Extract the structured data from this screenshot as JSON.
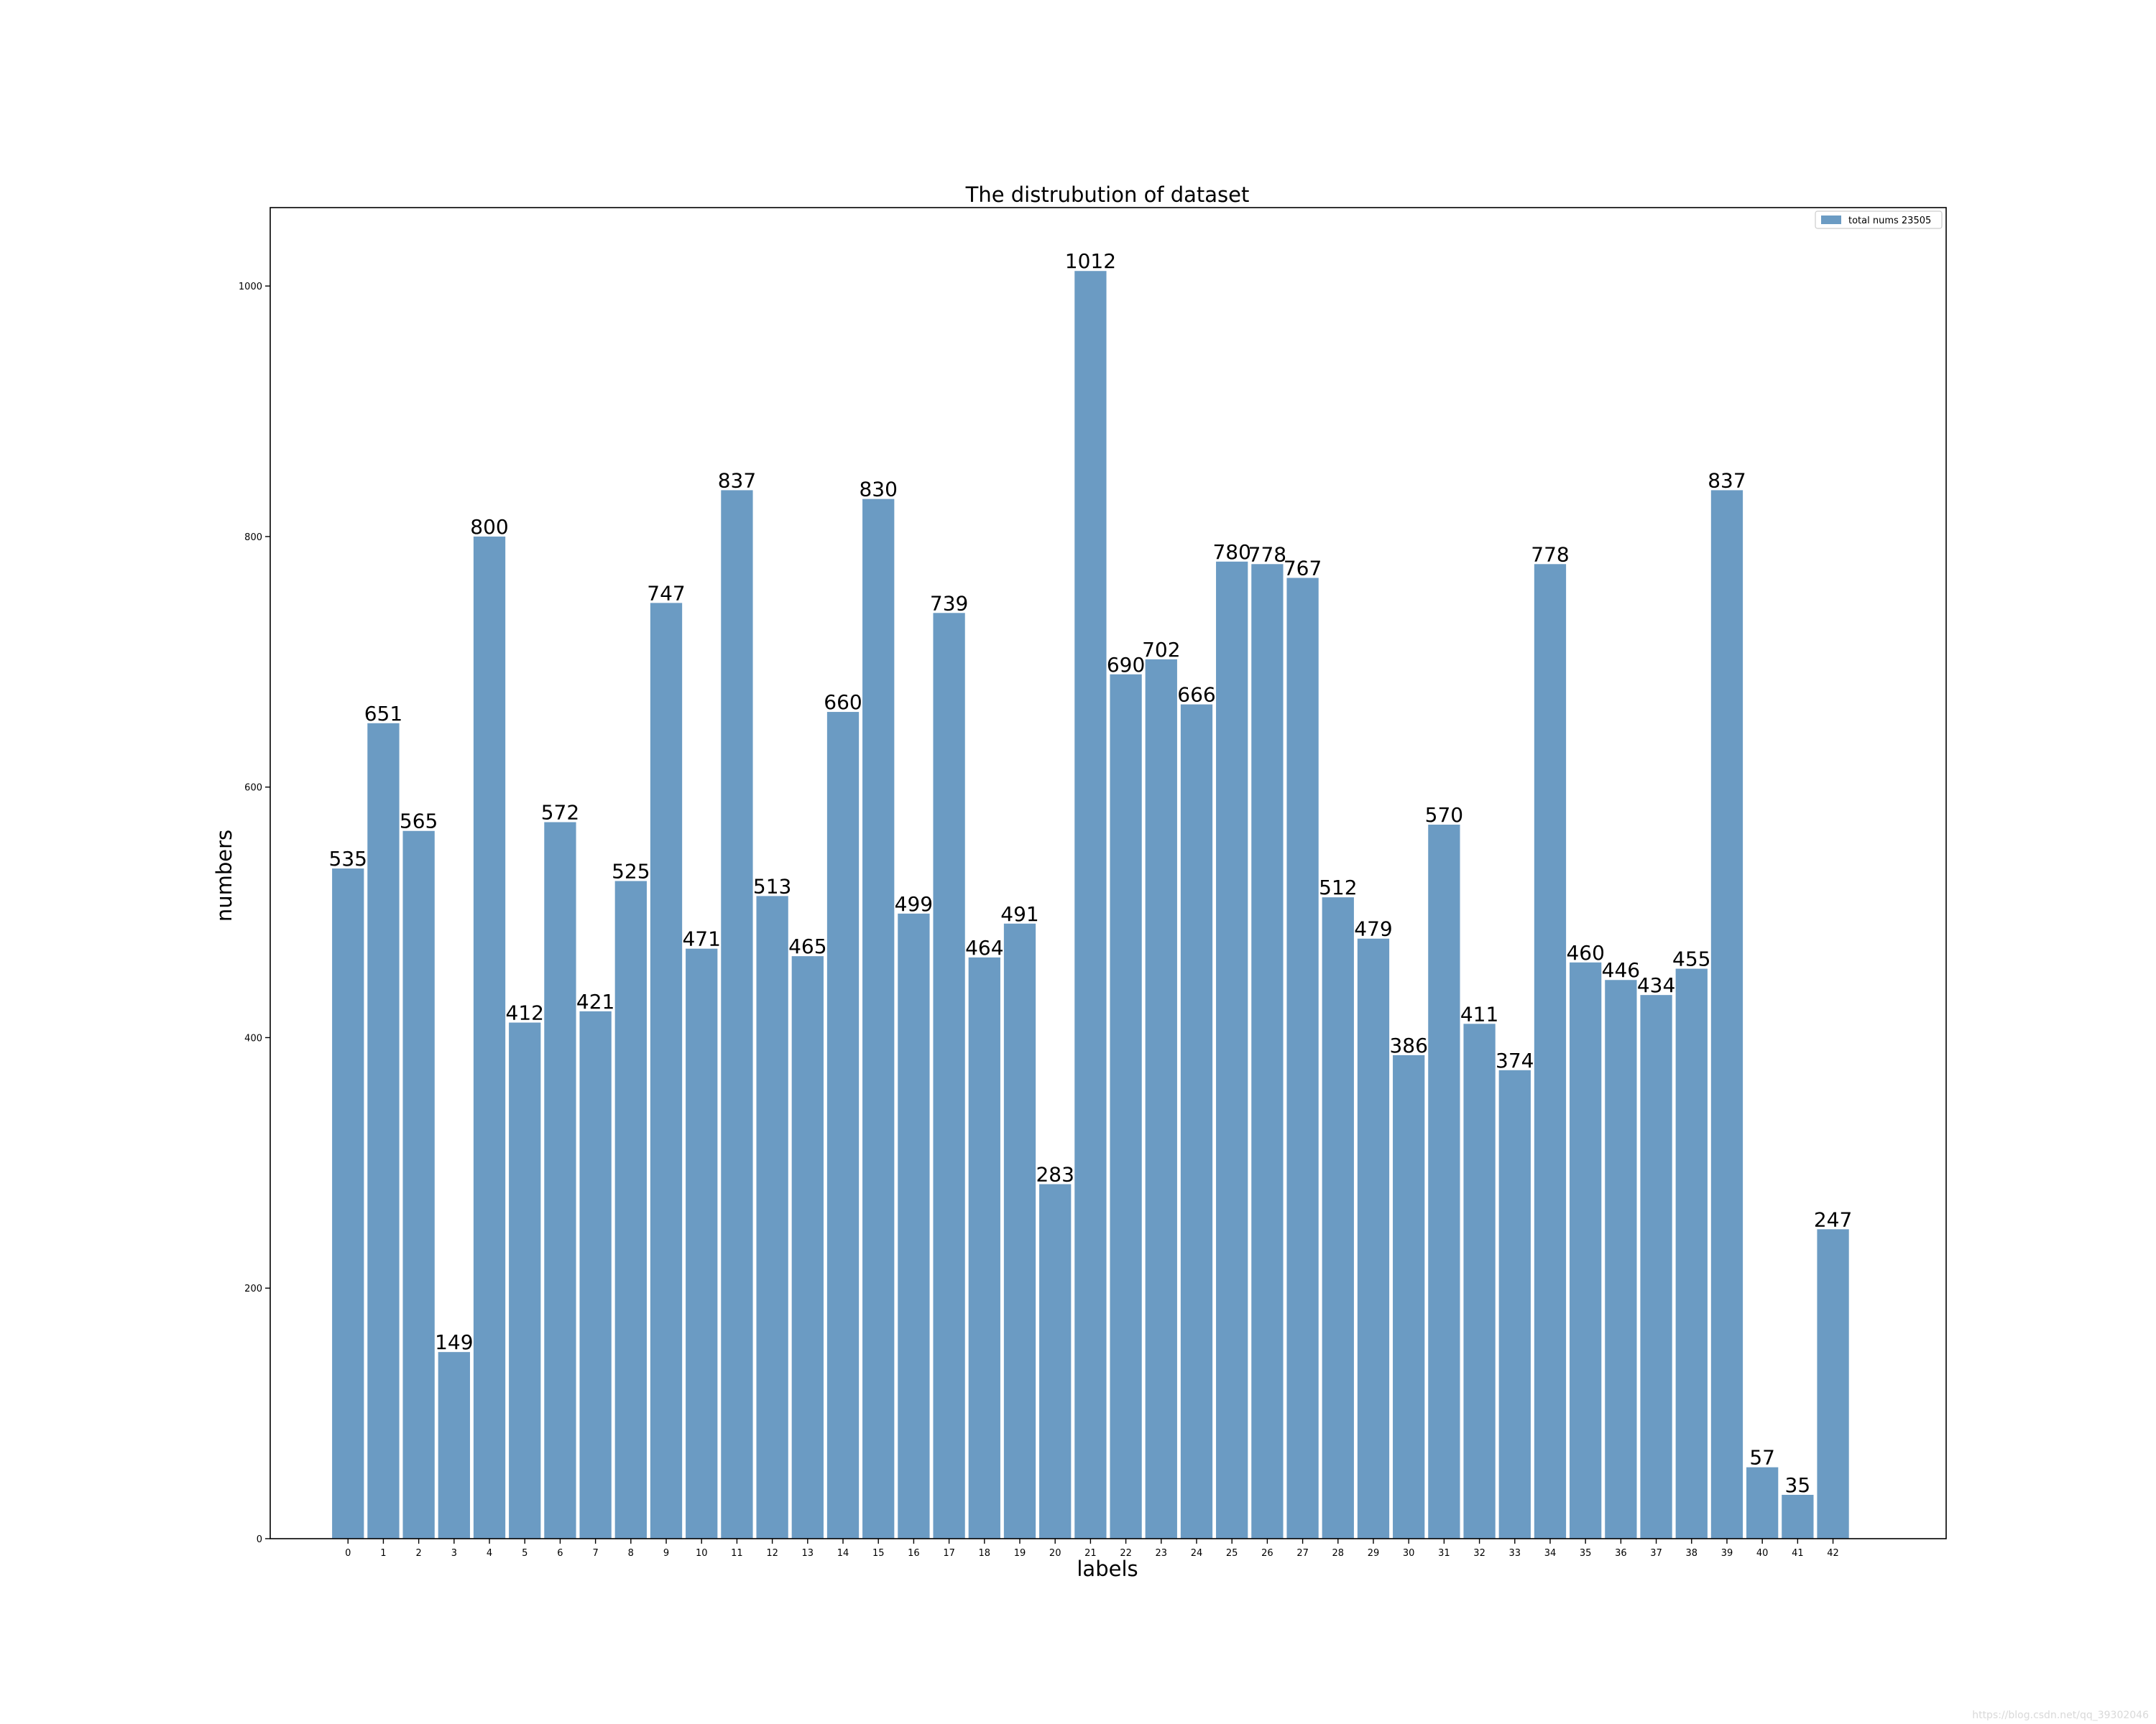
{
  "chart_data": {
    "type": "bar",
    "title": "The distrubution of dataset",
    "xlabel": "labels",
    "ylabel": "numbers",
    "categories": [
      "0",
      "1",
      "2",
      "3",
      "4",
      "5",
      "6",
      "7",
      "8",
      "9",
      "10",
      "11",
      "12",
      "13",
      "14",
      "15",
      "16",
      "17",
      "18",
      "19",
      "20",
      "21",
      "22",
      "23",
      "24",
      "25",
      "26",
      "27",
      "28",
      "29",
      "30",
      "31",
      "32",
      "33",
      "34",
      "35",
      "36",
      "37",
      "38",
      "39",
      "40",
      "41",
      "42"
    ],
    "series": [
      {
        "name": "total nums 23505",
        "values": [
          535,
          651,
          565,
          149,
          800,
          412,
          572,
          421,
          525,
          747,
          471,
          837,
          513,
          465,
          660,
          830,
          499,
          739,
          464,
          491,
          283,
          1012,
          690,
          702,
          666,
          780,
          778,
          767,
          512,
          479,
          386,
          570,
          411,
          374,
          778,
          460,
          446,
          434,
          455,
          837,
          57,
          35,
          247
        ]
      }
    ],
    "ylim": [
      0,
      1062.6
    ],
    "xlim": [
      -2.2,
      45.2
    ],
    "yticks": [
      0,
      200,
      400,
      600,
      800,
      1000
    ],
    "grid": false,
    "legend_position": "top-right",
    "bar_color": "#6b9bc3",
    "data_labels": true
  },
  "watermark": "https://blog.csdn.net/qq_39302046"
}
